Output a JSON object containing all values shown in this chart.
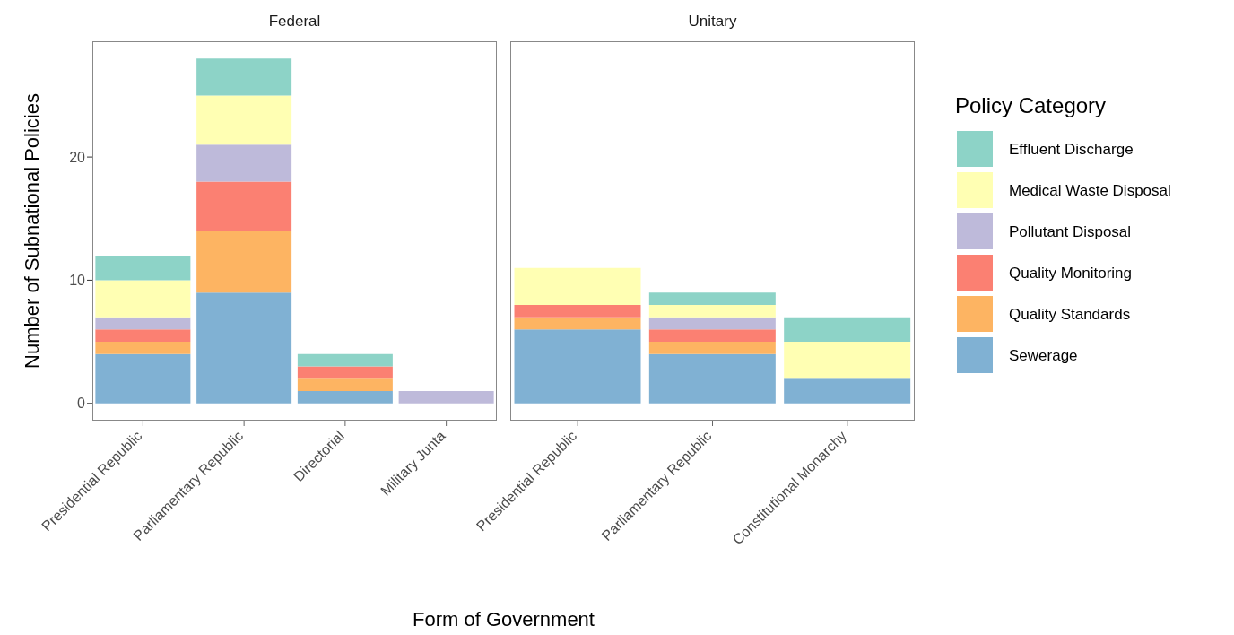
{
  "chart_data": [
    {
      "type": "bar",
      "title": "Federal",
      "stacked": true,
      "xlabel": "Form of Government",
      "ylabel": "Number of Subnational Policies",
      "categories": [
        "Presidential Republic",
        "Parliamentary Republic",
        "Directorial",
        "Military Junta"
      ],
      "ylim": [
        -1.4,
        29.4
      ],
      "yticks": [
        0,
        10,
        20
      ],
      "grid": false,
      "series": [
        {
          "color": "#80b1d3",
          "values": [
            4,
            9,
            1,
            null
          ]
        },
        {
          "color": "#fdb462",
          "values": [
            1,
            5,
            1,
            null
          ]
        },
        {
          "color": "#fb8072",
          "values": [
            1,
            4,
            1,
            null
          ]
        },
        {
          "color": "#bebada",
          "values": [
            1,
            3,
            null,
            1
          ]
        },
        {
          "color": "#ffffb3",
          "values": [
            3,
            4,
            null,
            null
          ]
        },
        {
          "color": "#8dd3c7",
          "values": [
            2,
            3,
            1,
            null
          ]
        }
      ]
    },
    {
      "type": "bar",
      "title": "Unitary",
      "stacked": true,
      "legend_title": "Policy Category",
      "legend": "right",
      "tick_labels": "x",
      "categories": [
        "Presidential Republic",
        "Parliamentary Republic",
        "Constitutional Monarchy"
      ],
      "ylim": [
        -1.4,
        29.4
      ],
      "yticks": [
        0,
        10,
        20
      ],
      "grid": false,
      "series": [
        {
          "name": "Sewerage",
          "color": "#80b1d3",
          "values": [
            6,
            4,
            2
          ]
        },
        {
          "name": "Quality Standards",
          "color": "#fdb462",
          "values": [
            1,
            1,
            null
          ]
        },
        {
          "name": "Quality Monitoring",
          "color": "#fb8072",
          "values": [
            1,
            1,
            null
          ]
        },
        {
          "name": "Pollutant Disposal",
          "color": "#bebada",
          "values": [
            null,
            1,
            null
          ]
        },
        {
          "name": "Medical Waste Disposal",
          "color": "#ffffb3",
          "values": [
            3,
            1,
            3
          ]
        },
        {
          "name": "Effluent Discharge",
          "color": "#8dd3c7",
          "values": [
            null,
            1,
            2
          ]
        }
      ]
    }
  ]
}
